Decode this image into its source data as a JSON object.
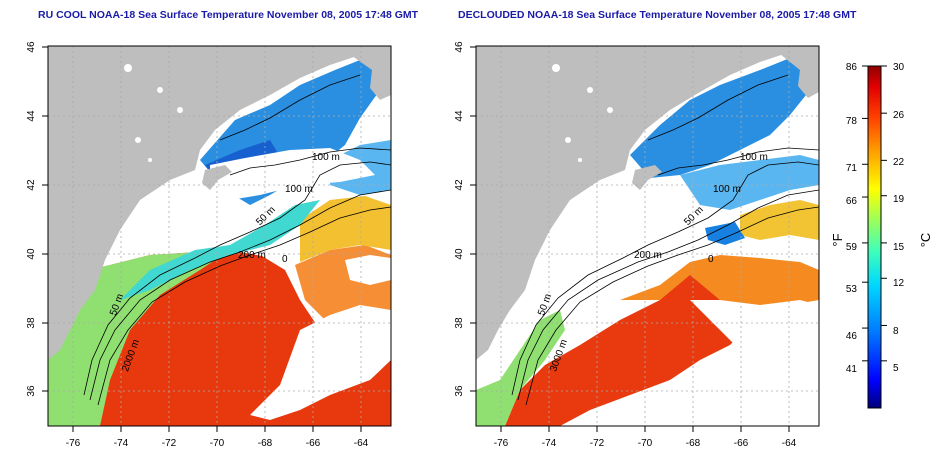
{
  "titles": {
    "left": "RU COOL NOAA-18 Sea Surface Temperature November 08, 2005 17:48 GMT",
    "right": "DECLOUDED NOAA-18 Sea Surface Temperature November 08, 2005 17:48 GMT"
  },
  "axes": {
    "x_ticks": [
      "-76",
      "-74",
      "-72",
      "-70",
      "-68",
      "-66",
      "-64"
    ],
    "x_values": [
      -76,
      -74,
      -72,
      -70,
      -68,
      -66,
      -64
    ],
    "y_ticks": [
      "36",
      "38",
      "40",
      "42",
      "44",
      "46"
    ],
    "y_values": [
      36,
      38,
      40,
      42,
      44,
      46
    ],
    "lon_range": [
      -77.2,
      -63
    ],
    "lat_range": [
      35,
      46
    ]
  },
  "contour_labels": {
    "left": [
      "100 m",
      "100 m",
      "50 m",
      "200 m",
      "0",
      "50 m",
      "2000 m"
    ],
    "right": [
      "100 m",
      "100 m",
      "50 m",
      "200 m",
      "0",
      "50 m",
      "3000 m"
    ]
  },
  "colorbar": {
    "fahrenheit_ticks": [
      "86",
      "78",
      "71",
      "66",
      "59",
      "53",
      "46",
      "41"
    ],
    "celsius_ticks": [
      "30",
      "26",
      "22",
      "19",
      "15",
      "12",
      "8",
      "5"
    ],
    "celsius_values": [
      30,
      26,
      22,
      19,
      15,
      12,
      8,
      5
    ],
    "fahrenheit_values": [
      86,
      78,
      71,
      66,
      59,
      53,
      46,
      41
    ],
    "range_c": [
      1,
      30
    ],
    "unit_f": "°F",
    "unit_c": "°C",
    "colors": [
      "#000090",
      "#0000ff",
      "#0080ff",
      "#00d0ff",
      "#40ffc0",
      "#a0ff60",
      "#ffff00",
      "#ffb000",
      "#ff6000",
      "#ff0000",
      "#a00000"
    ]
  },
  "legend_colors": {
    "land": "#bebebe",
    "clouds": "#ffffff",
    "cold_water": "#2a8fe0",
    "warm_water": "#e83010"
  }
}
